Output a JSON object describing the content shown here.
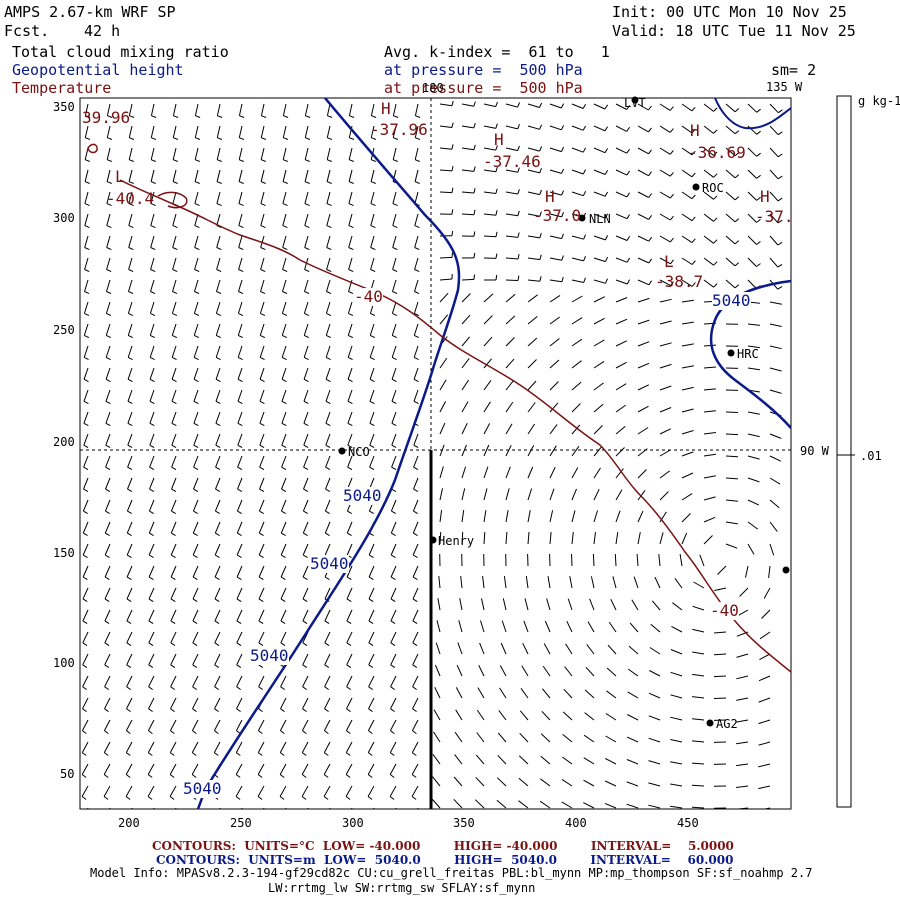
{
  "header": {
    "model_title": "AMPS 2.67-km WRF SP",
    "forecast_label": "Fcst.",
    "forecast_hours": "42 h",
    "init_time": "Init: 00 UTC Mon 10 Nov 25",
    "valid_time": "Valid: 18 UTC Tue 11 Nov 25",
    "field1_name": "Total cloud mixing ratio",
    "field2_name": "Geopotential height",
    "field3_name": "Temperature",
    "field1_level": "Avg. k-index =  61 to   1",
    "field2_level": "at pressure =  500 hPa",
    "field3_level": "at pressure =  500 hPa",
    "smoothing": "sm= 2"
  },
  "map": {
    "longitude_labels": [
      "180",
      "135 W",
      "90 W"
    ],
    "x_ticks": [
      "200",
      "250",
      "300",
      "350",
      "400",
      "450"
    ],
    "y_ticks": [
      "350",
      "300",
      "250",
      "200",
      "150",
      "100",
      "50"
    ],
    "stations": [
      "LVT",
      "ROC",
      "NLN",
      "HRC",
      "NCO",
      "Henry",
      "AG2"
    ],
    "height_contour_labels": [
      "5040",
      "5040",
      "5040",
      "5040",
      "5040"
    ],
    "temperature_contour_labels": [
      "-40",
      "-40"
    ],
    "extrema_labels": [
      {
        "mark": "H",
        "value": "-37.96"
      },
      {
        "mark": "H",
        "value": "-37.46"
      },
      {
        "mark": "H",
        "value": "-37.0"
      },
      {
        "mark": "H",
        "value": "-36.69"
      },
      {
        "mark": "H",
        "value": "-37."
      },
      {
        "mark": "L",
        "value": "-38.7"
      },
      {
        "mark": "L",
        "value": "-40.4"
      },
      {
        "mark": "",
        "value": "39.96"
      }
    ],
    "colorbar_unit": "g kg-1",
    "colorbar_value": ".01"
  },
  "footer": {
    "temp_contours": "CONTOURS:  UNITS=°C  LOW= -40.000        HIGH= -40.000        INTERVAL=    5.0000",
    "height_contours": "CONTOURS:  UNITS=m  LOW=  5040.0        HIGH=  5040.0        INTERVAL=    60.000",
    "model_info_line1": "Model Info: MPASv8.2.3-194-gf29cd82c CU:cu_grell_freitas PBL:bl_mynn MP:mp_thompson SF:sf_noahmp 2.7",
    "model_info_line2": "LW:rrtmg_lw SW:rrtmg_sw SFLAY:sf_mynn"
  },
  "colors": {
    "height_contour": "#0b1a8a",
    "temperature_contour": "#7a1212",
    "wind_barbs": "#000000"
  }
}
